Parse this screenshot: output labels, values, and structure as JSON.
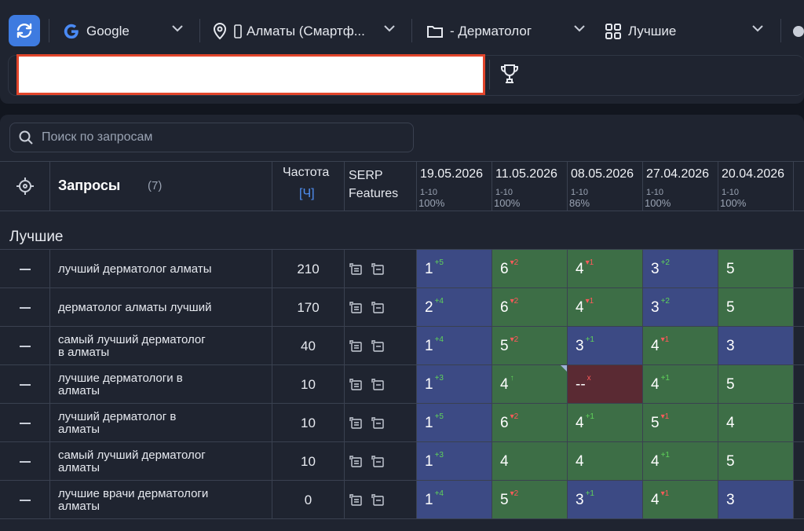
{
  "toolbar": {
    "engine": "Google",
    "region": "Алматы (Смартф...",
    "project": "- Дерматолог",
    "group_filter": "Лучшие"
  },
  "search": {
    "placeholder": "Поиск по запросам"
  },
  "table": {
    "header": {
      "queries_label": "Запросы",
      "queries_count": "(7)",
      "freq_label": "Частота",
      "freq_unit": "[Ч]",
      "serp_label_1": "SERP",
      "serp_label_2": "Features"
    },
    "dates": [
      {
        "date": "19.05.2026",
        "range": "1-10",
        "pct": "100%"
      },
      {
        "date": "11.05.2026",
        "range": "1-10",
        "pct": "100%"
      },
      {
        "date": "08.05.2026",
        "range": "1-10",
        "pct": "86%"
      },
      {
        "date": "27.04.2026",
        "range": "1-10",
        "pct": "100%"
      },
      {
        "date": "20.04.2026",
        "range": "1-10",
        "pct": "100%"
      }
    ],
    "group_name": "Лучшие",
    "rows": [
      {
        "q1": "лучший дерматолог алматы",
        "q2": "",
        "freq": "210",
        "cells": [
          {
            "v": "1",
            "d": "+5",
            "t": "up",
            "c": "blue"
          },
          {
            "v": "6",
            "d": "▾2",
            "t": "down",
            "c": "green"
          },
          {
            "v": "4",
            "d": "▾1",
            "t": "down",
            "c": "green"
          },
          {
            "v": "3",
            "d": "+2",
            "t": "up",
            "c": "blue"
          },
          {
            "v": "5",
            "d": "",
            "t": "",
            "c": "green"
          }
        ]
      },
      {
        "q1": "дерматолог алматы лучший",
        "q2": "",
        "freq": "170",
        "cells": [
          {
            "v": "2",
            "d": "+4",
            "t": "up",
            "c": "blue"
          },
          {
            "v": "6",
            "d": "▾2",
            "t": "down",
            "c": "green"
          },
          {
            "v": "4",
            "d": "▾1",
            "t": "down",
            "c": "green"
          },
          {
            "v": "3",
            "d": "+2",
            "t": "up",
            "c": "blue"
          },
          {
            "v": "5",
            "d": "",
            "t": "",
            "c": "green"
          }
        ]
      },
      {
        "q1": "самый лучший дерматолог",
        "q2": "в алматы",
        "freq": "40",
        "cells": [
          {
            "v": "1",
            "d": "+4",
            "t": "up",
            "c": "blue"
          },
          {
            "v": "5",
            "d": "▾2",
            "t": "down",
            "c": "green"
          },
          {
            "v": "3",
            "d": "+1",
            "t": "up",
            "c": "blue"
          },
          {
            "v": "4",
            "d": "▾1",
            "t": "down",
            "c": "green"
          },
          {
            "v": "3",
            "d": "",
            "t": "",
            "c": "blue"
          }
        ]
      },
      {
        "q1": "лучшие дерматологи в",
        "q2": "алматы",
        "freq": "10",
        "cells": [
          {
            "v": "1",
            "d": "+3",
            "t": "up",
            "c": "blue"
          },
          {
            "v": "4",
            "d": "↑",
            "t": "up",
            "c": "green"
          },
          {
            "v": "--",
            "d": "x",
            "t": "down",
            "c": "red"
          },
          {
            "v": "4",
            "d": "+1",
            "t": "up",
            "c": "green"
          },
          {
            "v": "5",
            "d": "",
            "t": "",
            "c": "green"
          }
        ]
      },
      {
        "q1": "лучший дерматолог в",
        "q2": "алматы",
        "freq": "10",
        "cells": [
          {
            "v": "1",
            "d": "+5",
            "t": "up",
            "c": "blue"
          },
          {
            "v": "6",
            "d": "▾2",
            "t": "down",
            "c": "green"
          },
          {
            "v": "4",
            "d": "+1",
            "t": "up",
            "c": "green"
          },
          {
            "v": "5",
            "d": "▾1",
            "t": "down",
            "c": "green"
          },
          {
            "v": "4",
            "d": "",
            "t": "",
            "c": "green"
          }
        ]
      },
      {
        "q1": "самый лучший дерматолог",
        "q2": "алматы",
        "freq": "10",
        "cells": [
          {
            "v": "1",
            "d": "+3",
            "t": "up",
            "c": "blue"
          },
          {
            "v": "4",
            "d": "",
            "t": "",
            "c": "green"
          },
          {
            "v": "4",
            "d": "",
            "t": "",
            "c": "green"
          },
          {
            "v": "4",
            "d": "+1",
            "t": "up",
            "c": "green"
          },
          {
            "v": "5",
            "d": "",
            "t": "",
            "c": "green"
          }
        ]
      },
      {
        "q1": "лучшие врачи дерматологи",
        "q2": "алматы",
        "freq": "0",
        "cells": [
          {
            "v": "1",
            "d": "+4",
            "t": "up",
            "c": "blue"
          },
          {
            "v": "5",
            "d": "▾2",
            "t": "down",
            "c": "green"
          },
          {
            "v": "3",
            "d": "+1",
            "t": "up",
            "c": "blue"
          },
          {
            "v": "4",
            "d": "▾1",
            "t": "down",
            "c": "green"
          },
          {
            "v": "3",
            "d": "",
            "t": "",
            "c": "blue"
          }
        ]
      }
    ]
  }
}
